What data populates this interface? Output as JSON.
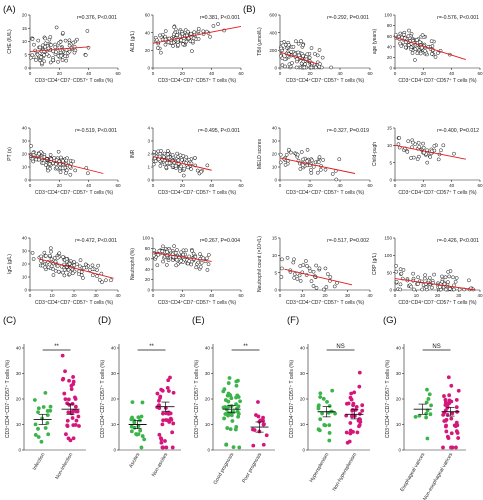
{
  "panel_labels": [
    "(A)",
    "(B)",
    "(C)",
    "(D)",
    "(E)",
    "(F)",
    "(G)"
  ],
  "scatter_common_xlabel": "CD3⁺CD4⁺CD7⁻CD57⁺ T cells (%)",
  "group_common_ylabel": "CD3⁺CD4⁺CD7⁻CD57⁺ T cells (%)",
  "chart_data": [
    {
      "type": "scatter",
      "id": "che",
      "stat": "r=0.376, P<0.001",
      "ylabel": "CHE (IU/L)",
      "xlim": [
        0,
        60
      ],
      "ylim": [
        0,
        20
      ],
      "xticks": [
        0,
        20,
        40,
        60
      ],
      "yticks": [
        0,
        5,
        10,
        15,
        20
      ],
      "fit": [
        [
          0,
          6.2
        ],
        [
          40,
          8.0
        ]
      ],
      "n": 110,
      "seed": 11,
      "cx": 16,
      "sx": 10,
      "cy": 7,
      "sy": 3.8
    },
    {
      "type": "scatter",
      "id": "alb",
      "stat": "r=0.381, P<0.001",
      "ylabel": "ALB (g/L)",
      "xlim": [
        0,
        60
      ],
      "ylim": [
        0,
        60
      ],
      "xticks": [
        0,
        20,
        40,
        60
      ],
      "yticks": [
        0,
        20,
        40,
        60
      ],
      "fit": [
        [
          0,
          28
        ],
        [
          60,
          47
        ]
      ],
      "n": 110,
      "seed": 12,
      "cx": 20,
      "sx": 10,
      "cy": 35,
      "sy": 7
    },
    {
      "type": "scatter",
      "id": "tbil",
      "stat": "r=-0.292, P=0.001",
      "ylabel": "TBil (μmol/L)",
      "xlim": [
        0,
        60
      ],
      "ylim": [
        0,
        600
      ],
      "xticks": [
        0,
        20,
        40,
        60
      ],
      "yticks": [
        0,
        200,
        400,
        600
      ],
      "fit": [
        [
          0,
          180
        ],
        [
          25,
          45
        ]
      ],
      "n": 110,
      "seed": 13,
      "cx": 13,
      "sx": 9,
      "cy": 110,
      "sy": 120
    },
    {
      "type": "scatter",
      "id": "age",
      "stat": "r=-0.576, P<0.001",
      "ylabel": "age (years)",
      "xlim": [
        0,
        60
      ],
      "ylim": [
        0,
        100
      ],
      "xticks": [
        0,
        20,
        40,
        60
      ],
      "yticks": [
        0,
        20,
        40,
        60,
        80,
        100
      ],
      "fit": [
        [
          0,
          58
        ],
        [
          50,
          16
        ]
      ],
      "n": 110,
      "seed": 14,
      "cx": 15,
      "sx": 9,
      "cy": 48,
      "sy": 12
    },
    {
      "type": "scatter",
      "id": "pt",
      "stat": "r=-0.519, P<0.001",
      "ylabel": "PT (s)",
      "xlim": [
        0,
        60
      ],
      "ylim": [
        0,
        40
      ],
      "xticks": [
        0,
        20,
        40,
        60
      ],
      "yticks": [
        0,
        10,
        20,
        30,
        40
      ],
      "fit": [
        [
          0,
          19
        ],
        [
          50,
          5
        ]
      ],
      "n": 110,
      "seed": 15,
      "cx": 16,
      "sx": 10,
      "cy": 14,
      "sy": 4
    },
    {
      "type": "scatter",
      "id": "inr",
      "stat": "r=-0.495, P<0.001",
      "ylabel": "INR",
      "xlim": [
        0,
        60
      ],
      "ylim": [
        0,
        4
      ],
      "xticks": [
        0,
        20,
        40,
        60
      ],
      "yticks": [
        0,
        1,
        2,
        3,
        4
      ],
      "fit": [
        [
          0,
          1.8
        ],
        [
          40,
          0.75
        ]
      ],
      "n": 110,
      "seed": 16,
      "cx": 14,
      "sx": 9,
      "cy": 1.35,
      "sy": 0.45
    },
    {
      "type": "scatter",
      "id": "meld",
      "stat": "r=-0.327, P=0.019",
      "ylabel": "MELD scores",
      "xlim": [
        0,
        60
      ],
      "ylim": [
        0,
        40
      ],
      "xticks": [
        0,
        20,
        40,
        60
      ],
      "yticks": [
        0,
        10,
        20,
        30,
        40
      ],
      "fit": [
        [
          0,
          17
        ],
        [
          50,
          5
        ]
      ],
      "n": 55,
      "seed": 17,
      "cx": 16,
      "sx": 9,
      "cy": 13,
      "sy": 5
    },
    {
      "type": "scatter",
      "id": "childpugh",
      "stat": "r=-0.400, P=0.012",
      "ylabel": "Child-pugh",
      "xlim": [
        0,
        60
      ],
      "ylim": [
        0,
        15
      ],
      "xticks": [
        0,
        20,
        40,
        60
      ],
      "yticks": [
        0,
        5,
        10,
        15
      ],
      "fit": [
        [
          0,
          10
        ],
        [
          50,
          6
        ]
      ],
      "n": 45,
      "seed": 18,
      "cx": 18,
      "sx": 9,
      "cy": 8,
      "sy": 2
    },
    {
      "type": "scatter",
      "id": "igg",
      "stat": "r=-0.472, P<0.001",
      "ylabel": "IgG (g/L)",
      "xlim": [
        0,
        40
      ],
      "ylim": [
        0,
        40
      ],
      "xticks": [
        0,
        10,
        20,
        30,
        40
      ],
      "yticks": [
        0,
        10,
        20,
        30,
        40
      ],
      "fit": [
        [
          4,
          24
        ],
        [
          38,
          9
        ]
      ],
      "n": 110,
      "seed": 19,
      "cx": 17,
      "sx": 8,
      "cy": 18,
      "sy": 5
    },
    {
      "type": "scatter",
      "id": "neutrophil_pct",
      "stat": "r=0.267, P=0.004",
      "ylabel": "Neutrophil (%)",
      "xlim": [
        0,
        60
      ],
      "ylim": [
        0,
        100
      ],
      "xticks": [
        0,
        20,
        40,
        60
      ],
      "yticks": [
        0,
        20,
        40,
        60,
        80,
        100
      ],
      "fit": [
        [
          0,
          72
        ],
        [
          40,
          55
        ]
      ],
      "n": 110,
      "seed": 20,
      "cx": 16,
      "sx": 10,
      "cy": 62,
      "sy": 12
    },
    {
      "type": "scatter",
      "id": "neutrophil_count",
      "stat": "r=-0.517, P=0.002",
      "ylabel": "Neutrophil count (×10⁹/L)",
      "xlim": [
        0,
        40
      ],
      "ylim": [
        0,
        15
      ],
      "xticks": [
        0,
        10,
        20,
        30,
        40
      ],
      "yticks": [
        0,
        5,
        10,
        15
      ],
      "fit": [
        [
          2,
          6
        ],
        [
          32,
          1.5
        ]
      ],
      "n": 40,
      "seed": 21,
      "cx": 14,
      "sx": 8,
      "cy": 4,
      "sy": 2.5
    },
    {
      "type": "scatter",
      "id": "crp",
      "stat": "r=-0.426, P<0.001",
      "ylabel": "CRP (g/L)",
      "xlim": [
        0,
        40
      ],
      "ylim": [
        0,
        150
      ],
      "xticks": [
        0,
        10,
        20,
        30,
        40
      ],
      "yticks": [
        0,
        50,
        100,
        150
      ],
      "fit": [
        [
          0,
          33
        ],
        [
          38,
          0
        ]
      ],
      "n": 90,
      "seed": 22,
      "cx": 16,
      "sx": 9,
      "cy": 15,
      "sy": 22
    },
    {
      "type": "dotplot",
      "id": "C",
      "categories": [
        "Infection",
        "Non-infection"
      ],
      "ylim": [
        0,
        40
      ],
      "yticks": [
        0,
        10,
        20,
        30,
        40
      ],
      "means": [
        12,
        16
      ],
      "sems": [
        2,
        2
      ],
      "colors": [
        "#3cb44b",
        "#d6177a"
      ],
      "n": [
        18,
        40
      ],
      "sig": "**",
      "seed": 31
    },
    {
      "type": "dotplot",
      "id": "D",
      "categories": [
        "Ascites",
        "Non-ascites"
      ],
      "ylim": [
        0,
        40
      ],
      "yticks": [
        0,
        10,
        20,
        30,
        40
      ],
      "means": [
        10,
        17
      ],
      "sems": [
        1.6,
        1.8
      ],
      "colors": [
        "#3cb44b",
        "#d6177a"
      ],
      "n": [
        20,
        38
      ],
      "sig": "**",
      "seed": 32
    },
    {
      "type": "dotplot",
      "id": "E",
      "categories": [
        "Good prognosis",
        "Poor prognosis"
      ],
      "ylim": [
        0,
        40
      ],
      "yticks": [
        0,
        10,
        20,
        30,
        40
      ],
      "means": [
        16,
        9
      ],
      "sems": [
        1.4,
        2
      ],
      "colors": [
        "#3cb44b",
        "#d6177a"
      ],
      "n": [
        48,
        16
      ],
      "sig": "**",
      "seed": 33
    },
    {
      "type": "dotplot",
      "id": "F",
      "categories": [
        "Hypersplenism",
        "Non-hypersplenism"
      ],
      "ylim": [
        0,
        40
      ],
      "yticks": [
        0,
        10,
        20,
        30,
        40
      ],
      "means": [
        15,
        14
      ],
      "sems": [
        2,
        1.8
      ],
      "colors": [
        "#3cb44b",
        "#d6177a"
      ],
      "n": [
        22,
        36
      ],
      "sig": "NS",
      "seed": 34
    },
    {
      "type": "dotplot",
      "id": "G",
      "categories": [
        "Esophageal varices",
        "Non-esophageal varices"
      ],
      "ylim": [
        0,
        40
      ],
      "yticks": [
        0,
        10,
        20,
        30,
        40
      ],
      "means": [
        16,
        15
      ],
      "sems": [
        2,
        1.7
      ],
      "colors": [
        "#3cb44b",
        "#d6177a"
      ],
      "n": [
        12,
        44
      ],
      "sig": "NS",
      "seed": 35
    }
  ]
}
